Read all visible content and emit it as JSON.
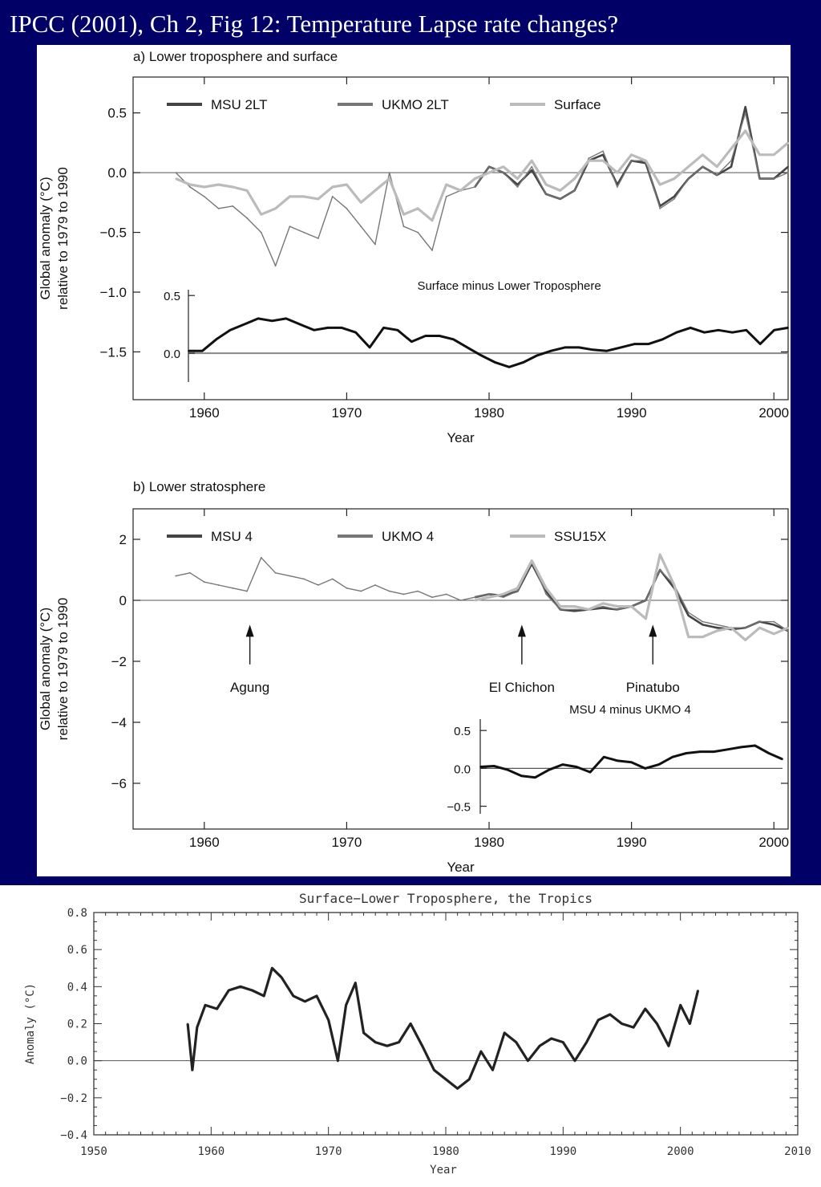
{
  "slide": {
    "title": "IPCC (2001), Ch 2, Fig 12: Temperature Lapse rate changes?",
    "colors": {
      "background": "#000066",
      "title": "#ffffff",
      "figure_bg": "#ffffff"
    }
  },
  "chart_data": [
    {
      "type": "line",
      "title": "a) Lower troposphere and surface",
      "xlabel": "Year",
      "ylabel": "Global anomaly (°C) relative to 1979 to 1990",
      "xlim": [
        1955,
        2001
      ],
      "ylim": [
        -1.9,
        0.8
      ],
      "x_ticks": [
        1960,
        1970,
        1980,
        1990,
        2000
      ],
      "y_ticks": [
        0.5,
        0.0,
        -0.5,
        -1.0,
        -1.5
      ],
      "y_tick_labels": [
        "0.5",
        "0.0",
        "−0.5",
        "−1.0",
        "−1.5"
      ],
      "legend_position": "top",
      "series": [
        {
          "name": "MSU 2LT",
          "color": "#444444",
          "x": [
            1979,
            1980,
            1981,
            1982,
            1983,
            1984,
            1985,
            1986,
            1987,
            1988,
            1989,
            1990,
            1991,
            1992,
            1993,
            1994,
            1995,
            1996,
            1997,
            1998,
            1999,
            2000,
            2001
          ],
          "values": [
            -0.12,
            0.05,
            0.0,
            -0.1,
            0.02,
            -0.18,
            -0.22,
            -0.15,
            0.1,
            0.15,
            -0.1,
            0.1,
            0.08,
            -0.28,
            -0.2,
            -0.05,
            0.05,
            -0.02,
            0.05,
            0.55,
            -0.05,
            -0.05,
            0.05
          ]
        },
        {
          "name": "UKMO 2LT",
          "color": "#777777",
          "x": [
            1958,
            1959,
            1960,
            1961,
            1962,
            1963,
            1964,
            1965,
            1966,
            1967,
            1968,
            1969,
            1970,
            1971,
            1972,
            1973,
            1974,
            1975,
            1976,
            1977,
            1978,
            1979,
            1980,
            1981,
            1982,
            1983,
            1984,
            1985,
            1986,
            1987,
            1988,
            1989,
            1990,
            1991,
            1992,
            1993,
            1994,
            1995,
            1996,
            1997,
            1998,
            1999,
            2000,
            2001
          ],
          "values": [
            0.0,
            -0.12,
            -0.2,
            -0.3,
            -0.28,
            -0.38,
            -0.5,
            -0.78,
            -0.45,
            -0.5,
            -0.55,
            -0.2,
            -0.3,
            -0.45,
            -0.6,
            0.0,
            -0.45,
            -0.5,
            -0.65,
            -0.2,
            -0.15,
            -0.12,
            0.05,
            0.0,
            -0.12,
            0.05,
            -0.18,
            -0.22,
            -0.15,
            0.12,
            0.18,
            -0.12,
            0.1,
            0.1,
            -0.3,
            -0.22,
            -0.05,
            0.05,
            -0.02,
            0.1,
            0.5,
            -0.05,
            -0.05,
            0.0
          ]
        },
        {
          "name": "Surface",
          "color": "#bbbbbb",
          "x": [
            1958,
            1959,
            1960,
            1961,
            1962,
            1963,
            1964,
            1965,
            1966,
            1967,
            1968,
            1969,
            1970,
            1971,
            1972,
            1973,
            1974,
            1975,
            1976,
            1977,
            1978,
            1979,
            1980,
            1981,
            1982,
            1983,
            1984,
            1985,
            1986,
            1987,
            1988,
            1989,
            1990,
            1991,
            1992,
            1993,
            1994,
            1995,
            1996,
            1997,
            1998,
            1999,
            2000,
            2001
          ],
          "values": [
            -0.05,
            -0.1,
            -0.12,
            -0.1,
            -0.12,
            -0.15,
            -0.35,
            -0.3,
            -0.2,
            -0.2,
            -0.22,
            -0.12,
            -0.1,
            -0.25,
            -0.15,
            -0.05,
            -0.35,
            -0.3,
            -0.4,
            -0.1,
            -0.15,
            -0.05,
            0.0,
            0.05,
            -0.05,
            0.1,
            -0.1,
            -0.15,
            -0.05,
            0.1,
            0.1,
            0.0,
            0.15,
            0.1,
            -0.1,
            -0.05,
            0.05,
            0.15,
            0.05,
            0.2,
            0.35,
            0.15,
            0.15,
            0.25
          ]
        }
      ]
    },
    {
      "type": "line",
      "title": "Surface minus Lower Troposphere",
      "xlim": [
        1958,
        2001
      ],
      "ylim": [
        -0.25,
        0.55
      ],
      "y_ticks": [
        0.5,
        0.0
      ],
      "y_tick_labels": [
        "0.5",
        "0.0"
      ],
      "series": [
        {
          "name": "",
          "color": "#111111",
          "x": [
            1958,
            1959,
            1960,
            1961,
            1962,
            1963,
            1964,
            1965,
            1966,
            1967,
            1968,
            1969,
            1970,
            1971,
            1972,
            1973,
            1974,
            1975,
            1976,
            1977,
            1978,
            1979,
            1980,
            1981,
            1982,
            1983,
            1984,
            1985,
            1986,
            1987,
            1988,
            1989,
            1990,
            1991,
            1992,
            1993,
            1994,
            1995,
            1996,
            1997,
            1998,
            1999,
            2000,
            2001
          ],
          "values": [
            0.02,
            0.02,
            0.12,
            0.2,
            0.25,
            0.3,
            0.28,
            0.3,
            0.25,
            0.2,
            0.22,
            0.22,
            0.18,
            0.05,
            0.22,
            0.2,
            0.1,
            0.15,
            0.15,
            0.12,
            0.05,
            -0.02,
            -0.08,
            -0.12,
            -0.08,
            -0.02,
            0.02,
            0.05,
            0.05,
            0.03,
            0.02,
            0.05,
            0.08,
            0.08,
            0.12,
            0.18,
            0.22,
            0.18,
            0.2,
            0.18,
            0.2,
            0.08,
            0.2,
            0.22
          ]
        }
      ]
    },
    {
      "type": "line",
      "title": "b) Lower stratosphere",
      "xlabel": "Year",
      "ylabel": "Global anomaly (°C) relative to 1979 to 1990",
      "xlim": [
        1955,
        2001
      ],
      "ylim": [
        -7.5,
        3.0
      ],
      "x_ticks": [
        1960,
        1970,
        1980,
        1990,
        2000
      ],
      "y_ticks": [
        2,
        0,
        -2,
        -4,
        -6
      ],
      "y_tick_labels": [
        "2",
        "0",
        "−2",
        "−4",
        "−6"
      ],
      "legend_position": "top",
      "annotations": [
        {
          "label": "Agung",
          "x": 1963.2
        },
        {
          "label": "El Chichon",
          "x": 1982.3
        },
        {
          "label": "Pinatubo",
          "x": 1991.5
        }
      ],
      "series": [
        {
          "name": "MSU 4",
          "color": "#444444",
          "x": [
            1979,
            1980,
            1981,
            1982,
            1983,
            1984,
            1985,
            1986,
            1987,
            1988,
            1989,
            1990,
            1991,
            1992,
            1993,
            1994,
            1995,
            1996,
            1997,
            1998,
            1999,
            2000,
            2001
          ],
          "values": [
            0.1,
            0.2,
            0.15,
            0.3,
            1.2,
            0.3,
            -0.3,
            -0.35,
            -0.3,
            -0.25,
            -0.3,
            -0.2,
            0.0,
            1.0,
            0.4,
            -0.5,
            -0.8,
            -0.9,
            -0.95,
            -0.9,
            -0.7,
            -0.8,
            -1.0
          ]
        },
        {
          "name": "UKMO 4",
          "color": "#777777",
          "x": [
            1958,
            1959,
            1960,
            1961,
            1962,
            1963,
            1964,
            1965,
            1966,
            1967,
            1968,
            1969,
            1970,
            1971,
            1972,
            1973,
            1974,
            1975,
            1976,
            1977,
            1978,
            1979,
            1980,
            1981,
            1982,
            1983,
            1984,
            1985,
            1986,
            1987,
            1988,
            1989,
            1990,
            1991,
            1992,
            1993,
            1994,
            1995,
            1996,
            1997,
            1998,
            1999,
            2000,
            2001
          ],
          "values": [
            0.8,
            0.9,
            0.6,
            0.5,
            0.4,
            0.3,
            1.4,
            0.9,
            0.8,
            0.7,
            0.5,
            0.7,
            0.4,
            0.3,
            0.5,
            0.3,
            0.2,
            0.3,
            0.1,
            0.2,
            0.0,
            0.1,
            0.2,
            0.1,
            0.3,
            1.3,
            0.2,
            -0.3,
            -0.3,
            -0.3,
            -0.2,
            -0.3,
            -0.2,
            0.0,
            1.0,
            0.5,
            -0.4,
            -0.7,
            -0.8,
            -0.9,
            -0.9,
            -0.7,
            -0.7,
            -1.0
          ]
        },
        {
          "name": "SSU15X",
          "color": "#bbbbbb",
          "x": [
            1979,
            1980,
            1981,
            1982,
            1983,
            1984,
            1985,
            1986,
            1987,
            1988,
            1989,
            1990,
            1991,
            1992,
            1993,
            1994,
            1995,
            1996,
            1997,
            1998,
            1999,
            2000,
            2001
          ],
          "values": [
            0.0,
            0.1,
            0.2,
            0.4,
            1.3,
            0.4,
            -0.2,
            -0.2,
            -0.3,
            -0.1,
            -0.2,
            -0.2,
            -0.6,
            1.5,
            0.5,
            -1.2,
            -1.2,
            -1.0,
            -0.9,
            -1.3,
            -0.9,
            -1.1,
            -0.9
          ]
        }
      ]
    },
    {
      "type": "line",
      "title": "MSU 4 minus UKMO 4",
      "xlim": [
        1979,
        2001
      ],
      "ylim": [
        -0.6,
        0.65
      ],
      "y_ticks": [
        0.5,
        0.0,
        -0.5
      ],
      "y_tick_labels": [
        "0.5",
        "0.0",
        "−0.5"
      ],
      "series": [
        {
          "name": "",
          "color": "#111111",
          "x": [
            1979,
            1980,
            1981,
            1982,
            1983,
            1984,
            1985,
            1986,
            1987,
            1988,
            1989,
            1990,
            1991,
            1992,
            1993,
            1994,
            1995,
            1996,
            1997,
            1998,
            1999,
            2000,
            2001
          ],
          "values": [
            0.02,
            0.03,
            -0.02,
            -0.1,
            -0.12,
            -0.02,
            0.05,
            0.02,
            -0.05,
            0.15,
            0.1,
            0.08,
            0.0,
            0.05,
            0.15,
            0.2,
            0.22,
            0.22,
            0.25,
            0.28,
            0.3,
            0.2,
            0.12
          ]
        }
      ]
    },
    {
      "type": "line",
      "title": "Surface−Lower Troposphere, the Tropics",
      "xlabel": "Year",
      "ylabel": "Anomaly (°C)",
      "xlim": [
        1950,
        2010
      ],
      "ylim": [
        -0.4,
        0.8
      ],
      "x_ticks": [
        1950,
        1960,
        1970,
        1980,
        1990,
        2000,
        2010
      ],
      "y_ticks": [
        0.8,
        0.6,
        0.4,
        0.2,
        0.0,
        -0.2,
        -0.4
      ],
      "y_tick_labels": [
        "0.8",
        "0.6",
        "0.4",
        "0.2",
        "0.0",
        "−0.2",
        "−0.4"
      ],
      "series": [
        {
          "name": "",
          "color": "#222222",
          "x": [
            1958.0,
            1958.4,
            1958.8,
            1959.5,
            1960.5,
            1961.5,
            1962.5,
            1963.5,
            1964.5,
            1965.2,
            1966.0,
            1967.0,
            1968.0,
            1969.0,
            1970.0,
            1970.8,
            1971.5,
            1972.3,
            1973.0,
            1974.0,
            1975.0,
            1976.0,
            1977.0,
            1978.0,
            1979.0,
            1980.0,
            1981.0,
            1982.0,
            1983.0,
            1984.0,
            1985.0,
            1986.0,
            1987.0,
            1988.0,
            1989.0,
            1990.0,
            1991.0,
            1992.0,
            1993.0,
            1994.0,
            1995.0,
            1996.0,
            1997.0,
            1998.0,
            1999.0,
            2000.0,
            2000.8,
            2001.5
          ],
          "values": [
            0.2,
            -0.05,
            0.18,
            0.3,
            0.28,
            0.38,
            0.4,
            0.38,
            0.35,
            0.5,
            0.45,
            0.35,
            0.32,
            0.35,
            0.22,
            0.0,
            0.3,
            0.42,
            0.15,
            0.1,
            0.08,
            0.1,
            0.2,
            0.08,
            -0.05,
            -0.1,
            -0.15,
            -0.1,
            0.05,
            -0.05,
            0.15,
            0.1,
            0.0,
            0.08,
            0.12,
            0.1,
            0.0,
            0.1,
            0.22,
            0.25,
            0.2,
            0.18,
            0.28,
            0.2,
            0.08,
            0.3,
            0.2,
            0.38
          ]
        }
      ]
    }
  ]
}
